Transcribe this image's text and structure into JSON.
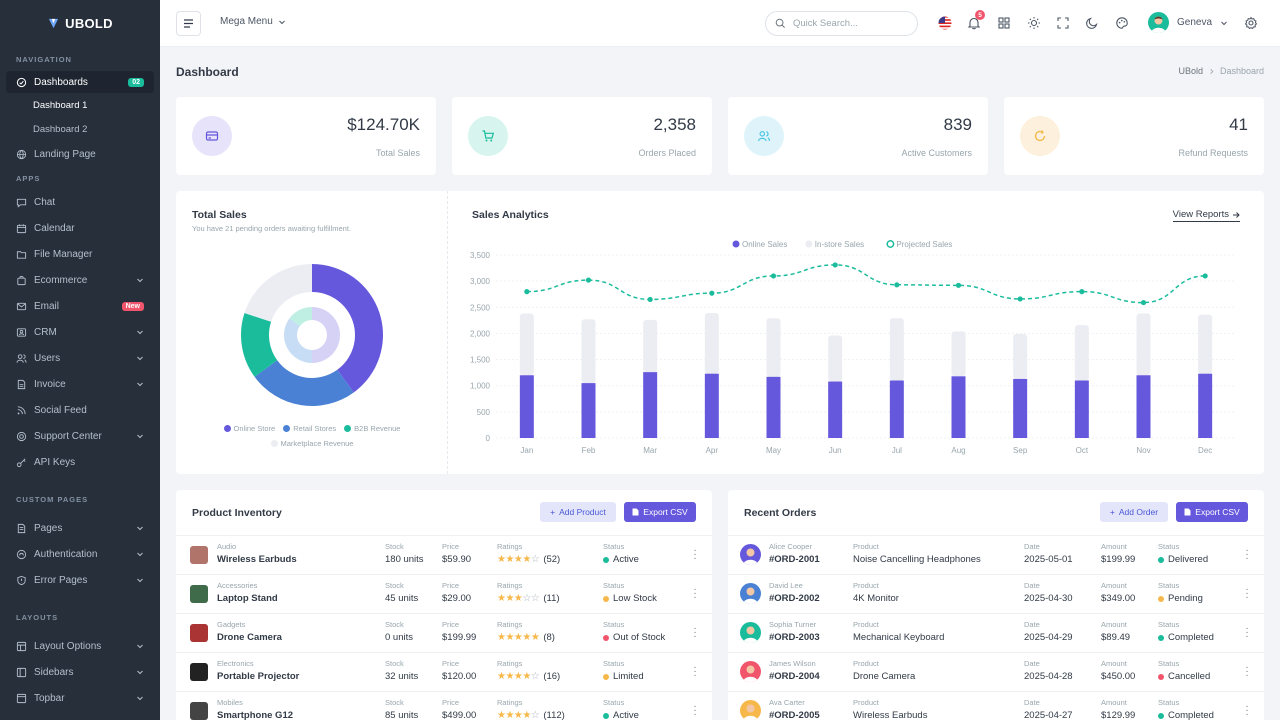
{
  "brand": {
    "name": "UBOLD"
  },
  "sidebar": {
    "sections": {
      "navigation": "NAVIGATION",
      "apps": "APPS",
      "custom": "CUSTOM PAGES",
      "layouts": "LAYOUTS"
    },
    "dashboards": {
      "label": "Dashboards",
      "badge": "02"
    },
    "dashboard_subs": [
      "Dashboard 1",
      "Dashboard 2"
    ],
    "items": {
      "landing": "Landing Page",
      "chat": "Chat",
      "calendar": "Calendar",
      "file_manager": "File Manager",
      "ecommerce": "Ecommerce",
      "email": "Email",
      "email_badge": "New",
      "crm": "CRM",
      "users": "Users",
      "invoice": "Invoice",
      "social": "Social Feed",
      "support": "Support Center",
      "api": "API Keys",
      "pages": "Pages",
      "auth": "Authentication",
      "errors": "Error Pages",
      "layout_options": "Layout Options",
      "sidebars": "Sidebars",
      "topbar": "Topbar"
    }
  },
  "topbar": {
    "mega_menu": "Mega Menu",
    "search_placeholder": "Quick Search...",
    "notifications": "5",
    "user": "Geneva"
  },
  "page": {
    "title": "Dashboard",
    "breadcrumb": [
      "UBold",
      "Dashboard"
    ]
  },
  "stats": [
    {
      "value": "$124.70K",
      "label": "Total Sales",
      "icon": "credit-card-icon",
      "color": "#6658dd",
      "bg": "#e6e3fa"
    },
    {
      "value": "2,358",
      "label": "Orders Placed",
      "icon": "cart-icon",
      "color": "#1abc9c",
      "bg": "#d8f4ee"
    },
    {
      "value": "839",
      "label": "Active Customers",
      "icon": "users-icon",
      "color": "#4fc6e1",
      "bg": "#def4fa"
    },
    {
      "value": "41",
      "label": "Refund Requests",
      "icon": "refresh-icon",
      "color": "#f7b84b",
      "bg": "#fdf0dc"
    }
  ],
  "total_sales": {
    "title": "Total Sales",
    "subtitle": "You have 21 pending orders awaiting fulfillment.",
    "legend": [
      "Online Store",
      "Retail Stores",
      "B2B Revenue",
      "Marketplace Revenue"
    ]
  },
  "sales_analytics": {
    "title": "Sales Analytics",
    "link": "View Reports"
  },
  "chart_data": [
    {
      "type": "pie",
      "title": "Total Sales",
      "categories": [
        "Online Store",
        "Retail Stores",
        "B2B Revenue",
        "Marketplace Revenue"
      ],
      "values": [
        40,
        25,
        15,
        20
      ],
      "inner_values": [
        50,
        35,
        15
      ],
      "colors": [
        "#6658dd",
        "#4a81d4",
        "#1abc9c",
        "#ebedf2"
      ]
    },
    {
      "type": "bar",
      "title": "Sales Analytics",
      "categories": [
        "Jan",
        "Feb",
        "Mar",
        "Apr",
        "May",
        "Jun",
        "Jul",
        "Aug",
        "Sep",
        "Oct",
        "Nov",
        "Dec"
      ],
      "series": [
        {
          "name": "Online Sales",
          "type": "bar",
          "color": "#6658dd",
          "values": [
            1200,
            1050,
            1260,
            1230,
            1170,
            1080,
            1100,
            1180,
            1130,
            1100,
            1200,
            1230
          ]
        },
        {
          "name": "In-store Sales",
          "type": "bar",
          "color": "#ebedf2",
          "values": [
            1180,
            1220,
            1000,
            1160,
            1120,
            880,
            1190,
            860,
            860,
            1060,
            1180,
            1130
          ]
        },
        {
          "name": "Projected Sales",
          "type": "line",
          "color": "#1abc9c",
          "values": [
            2800,
            3020,
            2650,
            2770,
            3100,
            3310,
            2930,
            2920,
            2660,
            2800,
            2590,
            3100
          ]
        }
      ],
      "ylim": [
        0,
        3500
      ],
      "yticks": [
        "0",
        "500",
        "1,000",
        "1,500",
        "2,000",
        "2,500",
        "3,000",
        "3,500"
      ],
      "stacked": true,
      "grid": true,
      "legend": "top-center"
    }
  ],
  "inventory": {
    "title": "Product Inventory",
    "add": "Add Product",
    "export": "Export CSV",
    "headers": {
      "stock": "Stock",
      "price": "Price",
      "ratings": "Ratings",
      "status": "Status"
    },
    "rows": [
      {
        "category": "Audio",
        "name": "Wireless Earbuds",
        "stock": "180 units",
        "price": "$59.90",
        "stars": "★★★★",
        "empty": "☆",
        "reviews": "(52)",
        "status": "Active",
        "status_color": "#1abc9c",
        "thumb": "#b0746a"
      },
      {
        "category": "Accessories",
        "name": "Laptop Stand",
        "stock": "45 units",
        "price": "$29.00",
        "stars": "★★★",
        "empty": "☆☆",
        "reviews": "(11)",
        "status": "Low Stock",
        "status_color": "#f7b84b",
        "thumb": "#3f6b4a"
      },
      {
        "category": "Gadgets",
        "name": "Drone Camera",
        "stock": "0 units",
        "price": "$199.99",
        "stars": "★★★★★",
        "empty": "",
        "reviews": "(8)",
        "status": "Out of Stock",
        "status_color": "#f1556c",
        "thumb": "#a33"
      },
      {
        "category": "Electronics",
        "name": "Portable Projector",
        "stock": "32 units",
        "price": "$120.00",
        "stars": "★★★★",
        "empty": "☆",
        "reviews": "(16)",
        "status": "Limited",
        "status_color": "#f7b84b",
        "thumb": "#222"
      },
      {
        "category": "Mobiles",
        "name": "Smartphone G12",
        "stock": "85 units",
        "price": "$499.00",
        "stars": "★★★★",
        "empty": "☆",
        "reviews": "(112)",
        "status": "Active",
        "status_color": "#1abc9c",
        "thumb": "#444"
      }
    ]
  },
  "orders": {
    "title": "Recent Orders",
    "add": "Add Order",
    "export": "Export CSV",
    "headers": {
      "product": "Product",
      "date": "Date",
      "amount": "Amount",
      "status": "Status"
    },
    "rows": [
      {
        "customer": "Alice Cooper",
        "id": "#ORD-2001",
        "product": "Noise Cancelling Headphones",
        "date": "2025-05-01",
        "amount": "$199.99",
        "status": "Delivered",
        "status_color": "#1abc9c",
        "avatar": "#6658dd"
      },
      {
        "customer": "David Lee",
        "id": "#ORD-2002",
        "product": "4K Monitor",
        "date": "2025-04-30",
        "amount": "$349.00",
        "status": "Pending",
        "status_color": "#f7b84b",
        "avatar": "#4a81d4"
      },
      {
        "customer": "Sophia Turner",
        "id": "#ORD-2003",
        "product": "Mechanical Keyboard",
        "date": "2025-04-29",
        "amount": "$89.49",
        "status": "Completed",
        "status_color": "#1abc9c",
        "avatar": "#1abc9c"
      },
      {
        "customer": "James Wilson",
        "id": "#ORD-2004",
        "product": "Drone Camera",
        "date": "2025-04-28",
        "amount": "$450.00",
        "status": "Cancelled",
        "status_color": "#f1556c",
        "avatar": "#f1556c"
      },
      {
        "customer": "Ava Carter",
        "id": "#ORD-2005",
        "product": "Wireless Earbuds",
        "date": "2025-04-27",
        "amount": "$129.99",
        "status": "Completed",
        "status_color": "#1abc9c",
        "avatar": "#f7b84b"
      }
    ]
  }
}
